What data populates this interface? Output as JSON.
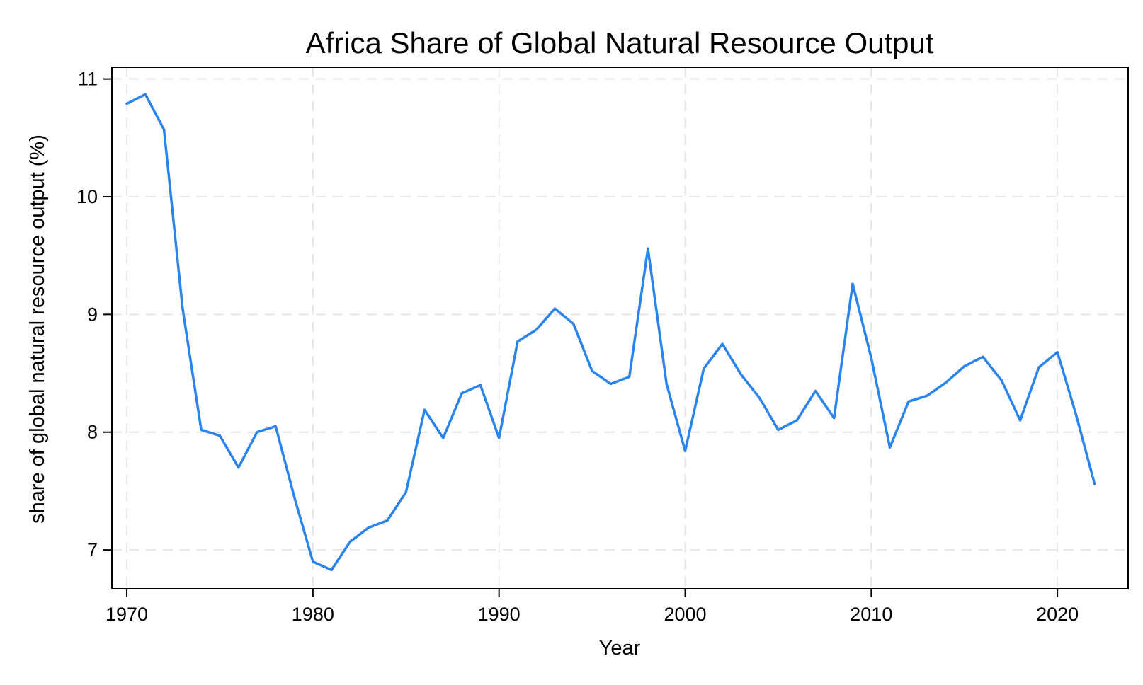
{
  "chart_data": {
    "type": "line",
    "title": "Africa Share of Global Natural Resource Output",
    "xlabel": "Year",
    "ylabel": "share of global natural resource output (%)",
    "xlim": [
      1969.2,
      2023.8
    ],
    "ylim": [
      6.67,
      11.1
    ],
    "xticks": [
      1970,
      1980,
      1990,
      2000,
      2010,
      2020
    ],
    "yticks": [
      7,
      8,
      9,
      10,
      11
    ],
    "xtick_labels": [
      "1970",
      "1980",
      "1990",
      "2000",
      "2010",
      "2020"
    ],
    "ytick_labels": [
      "7",
      "8",
      "9",
      "10",
      "11"
    ],
    "grid": true,
    "series": [
      {
        "name": "Africa",
        "color": "#2a84f0",
        "x": [
          1970,
          1971,
          1972,
          1973,
          1974,
          1975,
          1976,
          1977,
          1978,
          1979,
          1980,
          1981,
          1982,
          1983,
          1984,
          1985,
          1986,
          1987,
          1988,
          1989,
          1990,
          1991,
          1992,
          1993,
          1994,
          1995,
          1996,
          1997,
          1998,
          1999,
          2000,
          2001,
          2002,
          2003,
          2004,
          2005,
          2006,
          2007,
          2008,
          2009,
          2010,
          2011,
          2012,
          2013,
          2014,
          2015,
          2016,
          2017,
          2018,
          2019,
          2020,
          2021,
          2022
        ],
        "values": [
          10.79,
          10.87,
          10.57,
          9.05,
          8.02,
          7.97,
          7.7,
          8.0,
          8.05,
          7.45,
          6.9,
          6.83,
          7.07,
          7.19,
          7.25,
          7.49,
          8.19,
          7.95,
          8.33,
          8.4,
          7.95,
          8.77,
          8.87,
          9.05,
          8.92,
          8.52,
          8.41,
          8.47,
          9.56,
          8.41,
          7.84,
          8.54,
          8.75,
          8.49,
          8.29,
          8.02,
          8.1,
          8.35,
          8.12,
          9.26,
          8.63,
          7.87,
          8.26,
          8.31,
          8.42,
          8.56,
          8.64,
          8.44,
          8.1,
          8.55,
          8.68,
          8.15,
          7.56
        ]
      }
    ]
  }
}
